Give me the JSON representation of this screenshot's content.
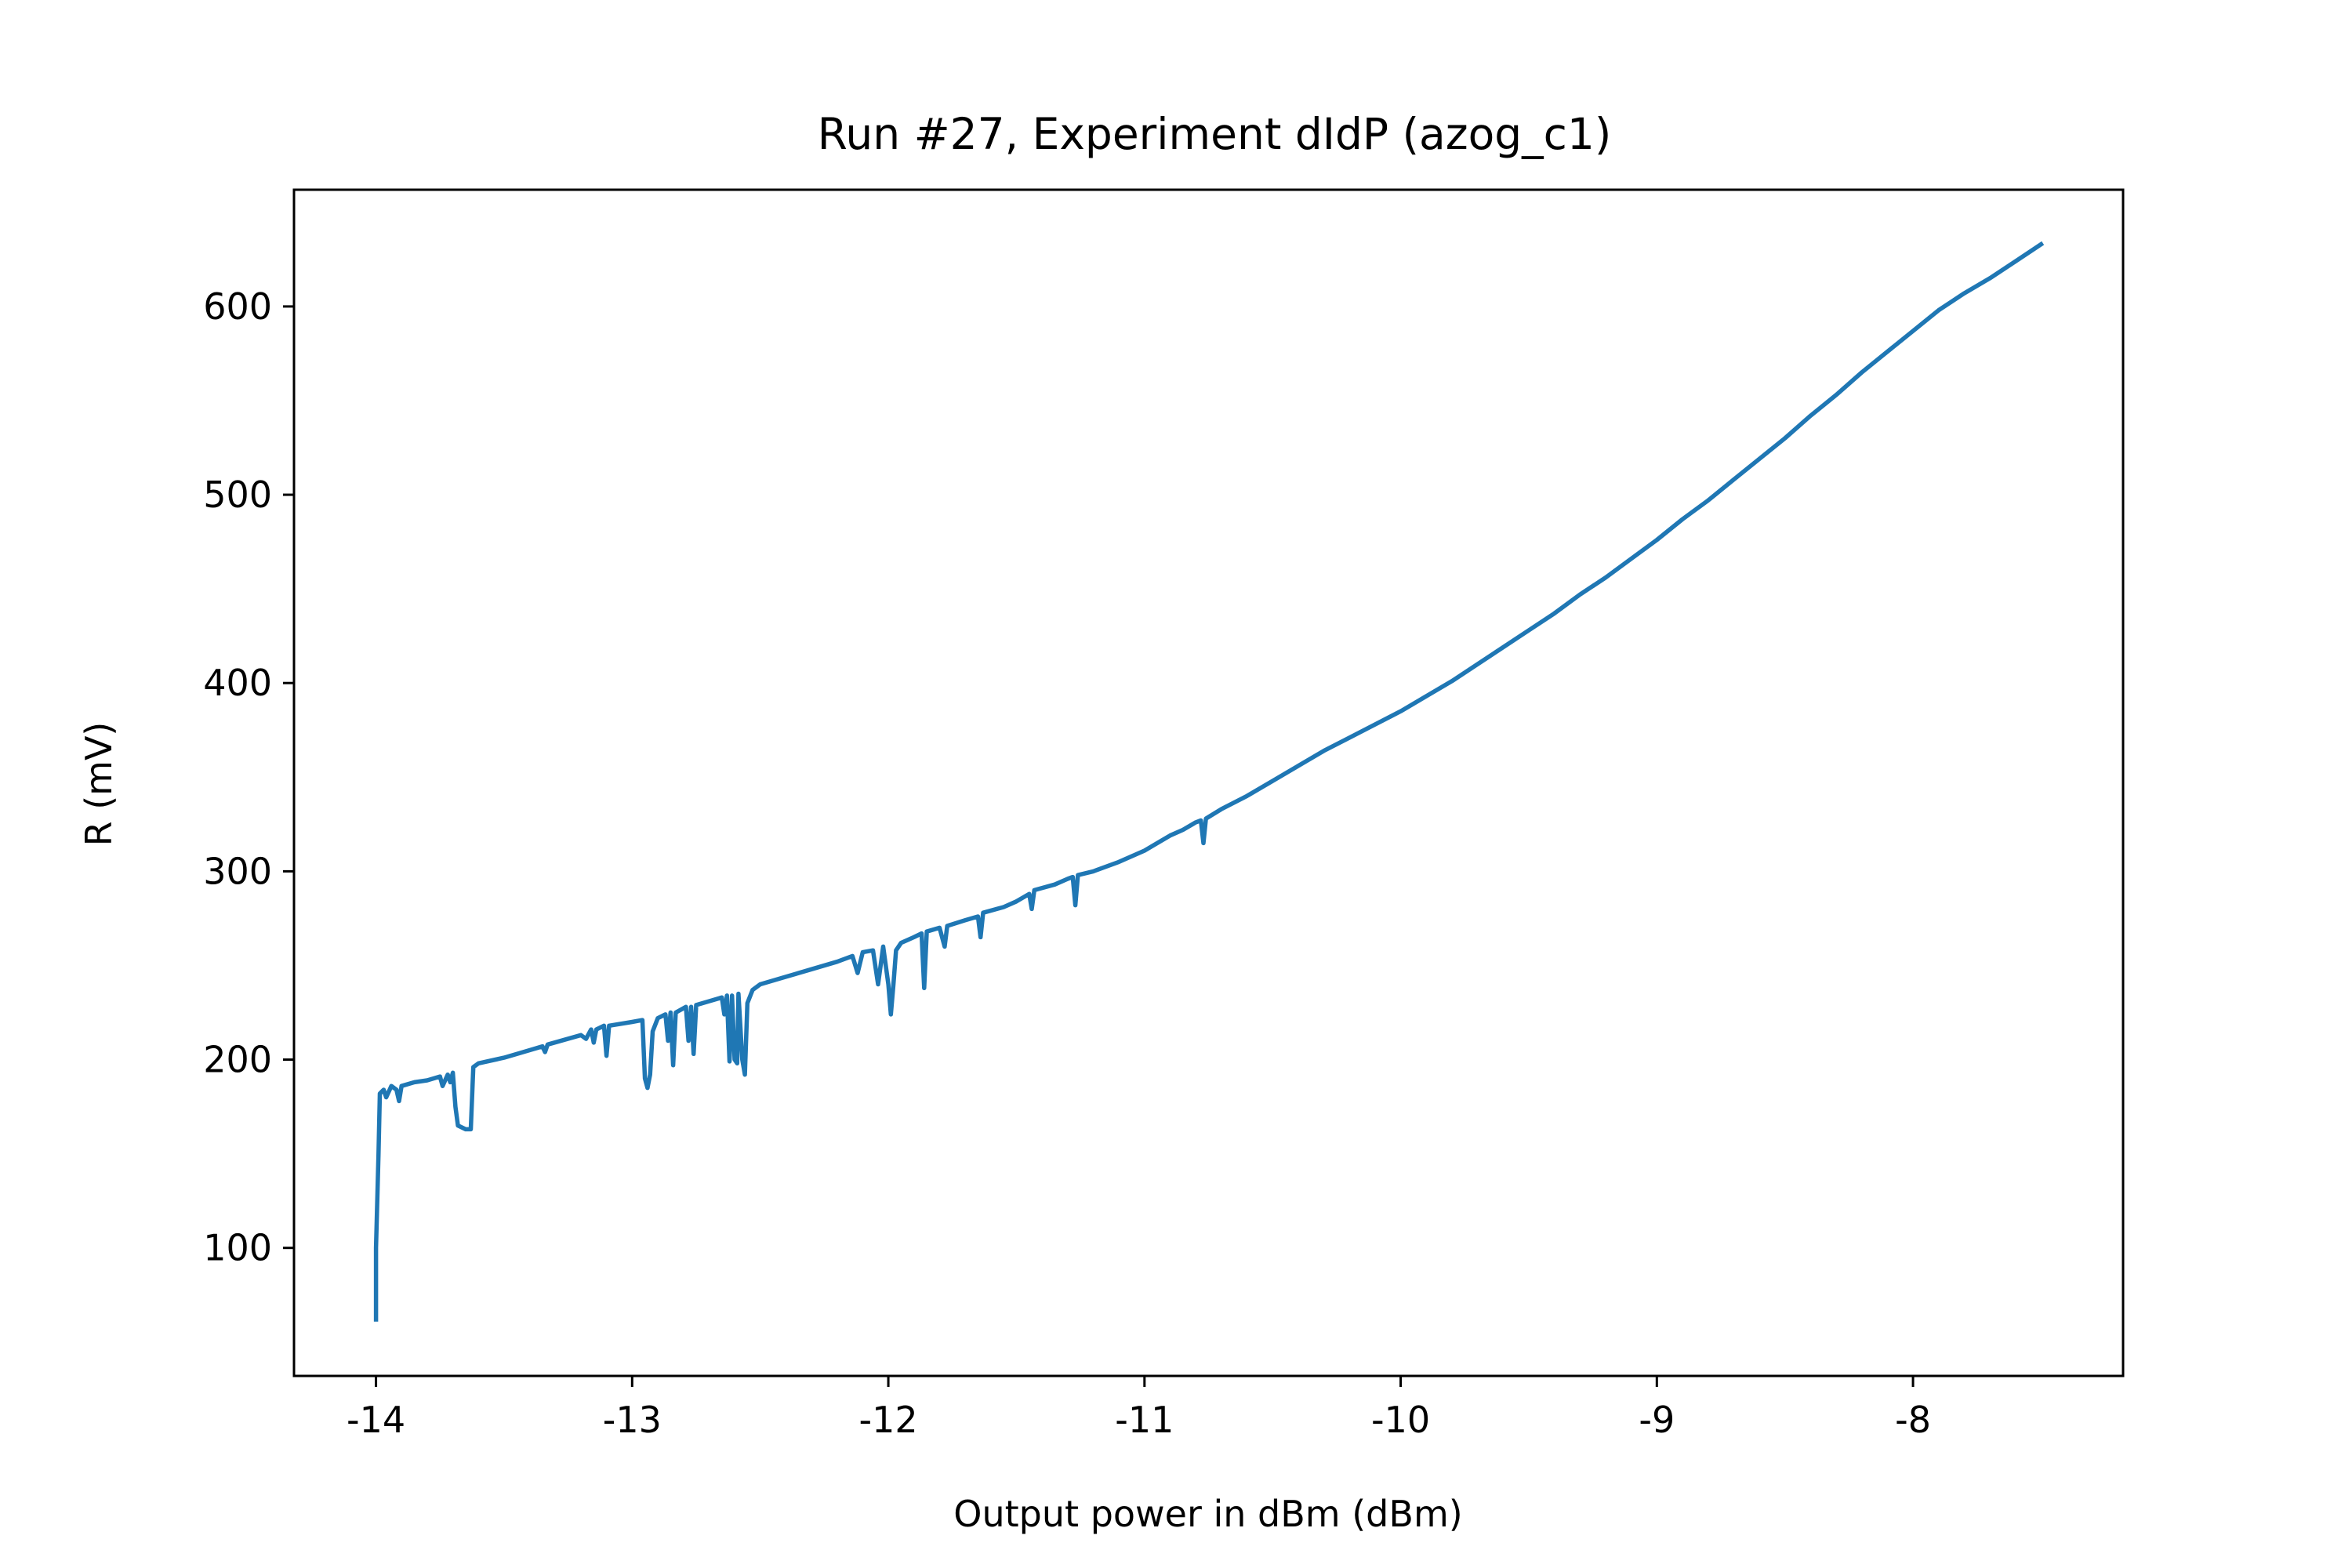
{
  "chart_data": {
    "type": "line",
    "title": "Run #27, Experiment dIdP (azog_c1)",
    "xlabel": "Output power in dBm (dBm)",
    "ylabel": "R (mV)",
    "xlim": [
      -14.32,
      -7.18
    ],
    "ylim": [
      32,
      662
    ],
    "xticks": [
      -14,
      -13,
      -12,
      -11,
      -10,
      -9,
      -8
    ],
    "yticks": [
      100,
      200,
      300,
      400,
      500,
      600
    ],
    "grid": false,
    "legend": "none",
    "series": [
      {
        "color": "#1f77b4",
        "points": [
          [
            -14.0,
            62
          ],
          [
            -14.0,
            100
          ],
          [
            -13.99,
            150
          ],
          [
            -13.985,
            182
          ],
          [
            -13.97,
            184
          ],
          [
            -13.96,
            180
          ],
          [
            -13.94,
            186
          ],
          [
            -13.92,
            184
          ],
          [
            -13.91,
            178
          ],
          [
            -13.9,
            186
          ],
          [
            -13.85,
            188
          ],
          [
            -13.8,
            189
          ],
          [
            -13.75,
            191
          ],
          [
            -13.74,
            186
          ],
          [
            -13.72,
            192
          ],
          [
            -13.71,
            188
          ],
          [
            -13.7,
            193
          ],
          [
            -13.69,
            175
          ],
          [
            -13.68,
            165
          ],
          [
            -13.65,
            163
          ],
          [
            -13.63,
            163
          ],
          [
            -13.62,
            196
          ],
          [
            -13.6,
            198
          ],
          [
            -13.5,
            201
          ],
          [
            -13.4,
            205
          ],
          [
            -13.35,
            207
          ],
          [
            -13.34,
            204
          ],
          [
            -13.33,
            208
          ],
          [
            -13.2,
            213
          ],
          [
            -13.18,
            211
          ],
          [
            -13.16,
            216
          ],
          [
            -13.15,
            209
          ],
          [
            -13.14,
            216
          ],
          [
            -13.11,
            218
          ],
          [
            -13.1,
            202
          ],
          [
            -13.09,
            218
          ],
          [
            -13.0,
            220
          ],
          [
            -12.96,
            221
          ],
          [
            -12.95,
            190
          ],
          [
            -12.94,
            185
          ],
          [
            -12.93,
            192
          ],
          [
            -12.92,
            215
          ],
          [
            -12.9,
            222
          ],
          [
            -12.87,
            224
          ],
          [
            -12.86,
            210
          ],
          [
            -12.85,
            225
          ],
          [
            -12.84,
            197
          ],
          [
            -12.83,
            225
          ],
          [
            -12.79,
            228
          ],
          [
            -12.78,
            210
          ],
          [
            -12.77,
            228
          ],
          [
            -12.76,
            203
          ],
          [
            -12.75,
            229
          ],
          [
            -12.7,
            231
          ],
          [
            -12.65,
            233
          ],
          [
            -12.64,
            224
          ],
          [
            -12.63,
            234
          ],
          [
            -12.62,
            199
          ],
          [
            -12.61,
            234
          ],
          [
            -12.6,
            200
          ],
          [
            -12.59,
            198
          ],
          [
            -12.585,
            235
          ],
          [
            -12.57,
            200
          ],
          [
            -12.56,
            192
          ],
          [
            -12.55,
            230
          ],
          [
            -12.53,
            237
          ],
          [
            -12.5,
            240
          ],
          [
            -12.4,
            244
          ],
          [
            -12.3,
            248
          ],
          [
            -12.2,
            252
          ],
          [
            -12.14,
            255
          ],
          [
            -12.12,
            246
          ],
          [
            -12.1,
            257
          ],
          [
            -12.06,
            258
          ],
          [
            -12.04,
            240
          ],
          [
            -12.02,
            260
          ],
          [
            -12.0,
            240
          ],
          [
            -11.99,
            224
          ],
          [
            -11.98,
            240
          ],
          [
            -11.97,
            258
          ],
          [
            -11.95,
            262
          ],
          [
            -11.9,
            265
          ],
          [
            -11.87,
            267
          ],
          [
            -11.86,
            238
          ],
          [
            -11.85,
            268
          ],
          [
            -11.8,
            270
          ],
          [
            -11.78,
            260
          ],
          [
            -11.77,
            271
          ],
          [
            -11.7,
            274
          ],
          [
            -11.65,
            276
          ],
          [
            -11.64,
            265
          ],
          [
            -11.63,
            278
          ],
          [
            -11.55,
            281
          ],
          [
            -11.5,
            284
          ],
          [
            -11.45,
            288
          ],
          [
            -11.44,
            280
          ],
          [
            -11.43,
            290
          ],
          [
            -11.35,
            293
          ],
          [
            -11.3,
            296
          ],
          [
            -11.28,
            297
          ],
          [
            -11.27,
            282
          ],
          [
            -11.26,
            298
          ],
          [
            -11.2,
            300
          ],
          [
            -11.1,
            305
          ],
          [
            -11.0,
            311
          ],
          [
            -10.95,
            315
          ],
          [
            -10.9,
            319
          ],
          [
            -10.85,
            322
          ],
          [
            -10.8,
            326
          ],
          [
            -10.78,
            327
          ],
          [
            -10.77,
            315
          ],
          [
            -10.76,
            328
          ],
          [
            -10.7,
            333
          ],
          [
            -10.6,
            340
          ],
          [
            -10.5,
            348
          ],
          [
            -10.4,
            356
          ],
          [
            -10.3,
            364
          ],
          [
            -10.2,
            371
          ],
          [
            -10.1,
            378
          ],
          [
            -10.0,
            385
          ],
          [
            -9.9,
            393
          ],
          [
            -9.8,
            401
          ],
          [
            -9.7,
            410
          ],
          [
            -9.6,
            419
          ],
          [
            -9.5,
            428
          ],
          [
            -9.4,
            437
          ],
          [
            -9.3,
            447
          ],
          [
            -9.2,
            456
          ],
          [
            -9.1,
            466
          ],
          [
            -9.0,
            476
          ],
          [
            -8.9,
            487
          ],
          [
            -8.8,
            497
          ],
          [
            -8.7,
            508
          ],
          [
            -8.6,
            519
          ],
          [
            -8.5,
            530
          ],
          [
            -8.4,
            542
          ],
          [
            -8.3,
            553
          ],
          [
            -8.2,
            565
          ],
          [
            -8.1,
            576
          ],
          [
            -8.0,
            587
          ],
          [
            -7.9,
            598
          ],
          [
            -7.8,
            607
          ],
          [
            -7.7,
            615
          ],
          [
            -7.6,
            624
          ],
          [
            -7.5,
            633
          ]
        ]
      }
    ]
  }
}
